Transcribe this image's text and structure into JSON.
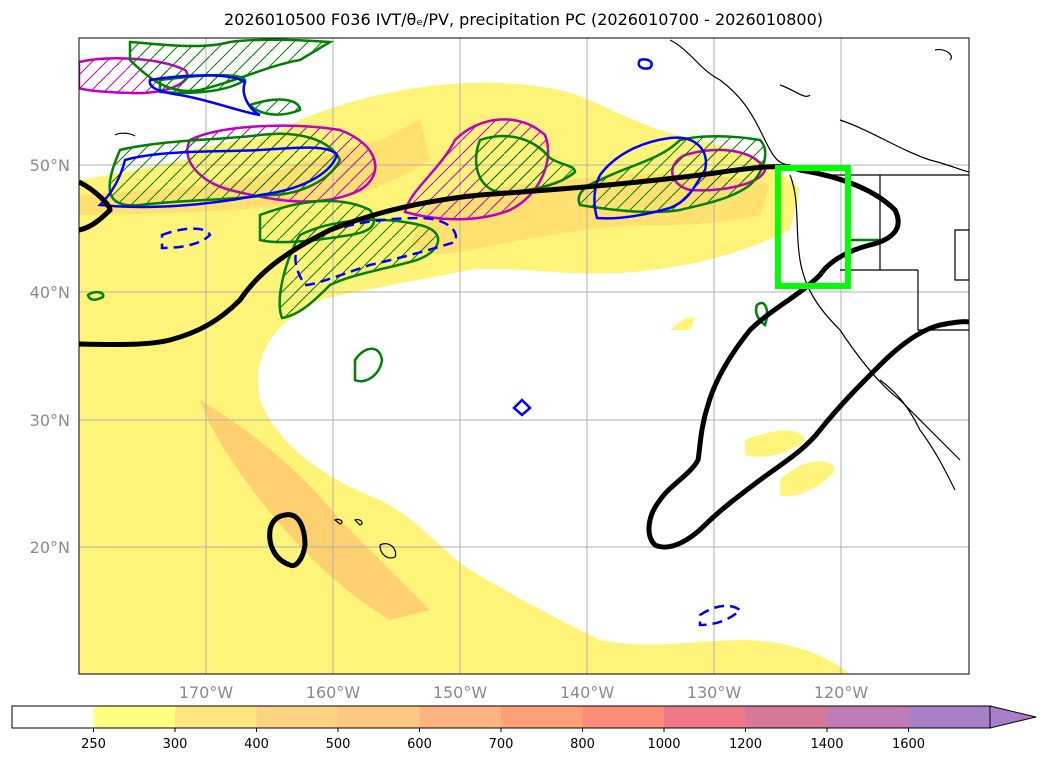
{
  "title": "2026010500 F036 IVT/θₑ/PV, precipitation PC (2026010700 - 2026010800)",
  "map": {
    "lon_labels": [
      "170°W",
      "160°W",
      "150°W",
      "140°W",
      "130°W",
      "120°W"
    ],
    "lat_labels": [
      "50°N",
      "40°N",
      "30°N",
      "20°N"
    ],
    "highlight_box_color": "#00ff00",
    "ivt_contour_color": "#000000",
    "theta_e_color": "#008000",
    "pv_color": "#0000ff",
    "precip_color": "#c000c0",
    "coastline_color": "#000000"
  },
  "colorbar": {
    "levels": [
      "250",
      "300",
      "400",
      "500",
      "600",
      "700",
      "800",
      "1000",
      "1200",
      "1400",
      "1600"
    ],
    "colors": [
      "#ffffff",
      "#ffff80",
      "#ffe680",
      "#ffd480",
      "#ffc880",
      "#ffb480",
      "#ffa078",
      "#ff8c78",
      "#f07888",
      "#d87898",
      "#c07ab8",
      "#a880c8"
    ]
  }
}
